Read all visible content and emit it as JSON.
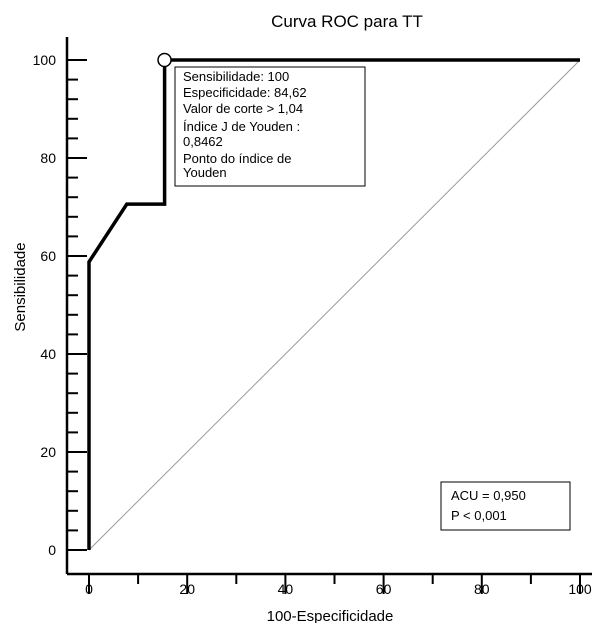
{
  "chart_data": {
    "type": "line",
    "title": "Curva ROC para TT",
    "xlabel": "100-Especificidade",
    "ylabel": "Sensibilidade",
    "xlim": [
      0,
      100
    ],
    "ylim": [
      0,
      100
    ],
    "x_ticks": [
      "0",
      "20",
      "40",
      "60",
      "80",
      "100"
    ],
    "y_ticks": [
      "0",
      "20",
      "40",
      "60",
      "80",
      "100"
    ],
    "grid": false,
    "series": [
      {
        "points": [
          [
            0,
            0
          ],
          [
            0,
            58.8
          ],
          [
            7.7,
            70.6
          ],
          [
            15.4,
            70.6
          ],
          [
            15.4,
            100
          ],
          [
            100,
            100
          ]
        ],
        "color": "#000000"
      }
    ],
    "reference_line": {
      "points": [
        [
          0,
          0
        ],
        [
          100,
          100
        ]
      ],
      "color": "#999999"
    },
    "optimal_point": {
      "x": 15.38,
      "y": 100
    },
    "annotations": {
      "youden": [
        "Sensibilidade: 100",
        "Especificidade: 84,62",
        "Valor de corte > 1,04",
        "Índice J de Youden :",
        "0,8462",
        "Ponto do índice de",
        "Youden"
      ],
      "auc": [
        "ACU = 0,950",
        "P < 0,001"
      ]
    }
  }
}
